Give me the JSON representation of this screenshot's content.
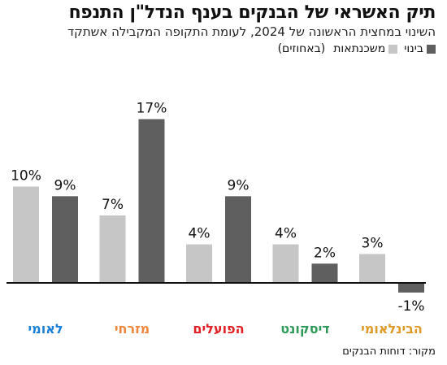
{
  "title": "תיק האשראי של הבנקים בענף הנדל\"ן התנפח",
  "subtitle": "השינוי במחצית הראשונה של 2024, לעומת התקופה המקבילה אשתקד",
  "unit_note": "(באחוזים)",
  "source": "מקור: דוחות הבנקים",
  "colors": {
    "construction": "#5f5f5f",
    "mortgages": "#c6c6c6",
    "axis": "#111111"
  },
  "chart_data": {
    "type": "bar",
    "categories": [
      "לאומי",
      "מזרחי",
      "הפועלים",
      "דיסקונט",
      "הבינלאומי"
    ],
    "category_colors": [
      "#1a7fd4",
      "#f0863c",
      "#e31e24",
      "#2e9a58",
      "#e09a2a"
    ],
    "series": [
      {
        "name": "משכנתאות",
        "values": [
          10,
          7,
          4,
          4,
          3
        ],
        "labels": [
          "10%",
          "7%",
          "4%",
          "4%",
          "3%"
        ]
      },
      {
        "name": "בינוי",
        "values": [
          9,
          17,
          9,
          2,
          -1
        ],
        "labels": [
          "9%",
          "17%",
          "9%",
          "2%",
          "-1%"
        ]
      }
    ],
    "ylim": [
      -1,
      17
    ],
    "grid": false
  }
}
